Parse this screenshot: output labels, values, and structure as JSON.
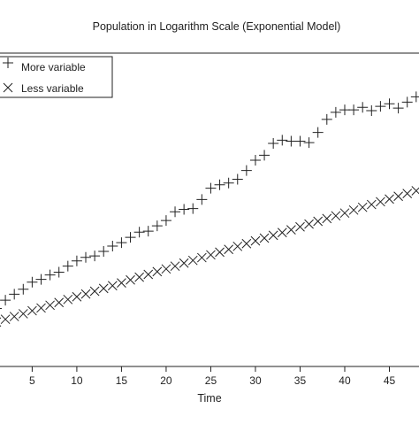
{
  "chart_data": {
    "type": "scatter",
    "title": "Population in Logarithm Scale (Exponential Model)",
    "xlabel": "Time",
    "ylabel": "",
    "xlim": [
      0.5,
      49
    ],
    "ylim": [
      0,
      1
    ],
    "x_ticks": [
      5,
      10,
      15,
      20,
      25,
      30,
      35,
      40,
      45
    ],
    "grid": false,
    "legend_position": "top-left",
    "series": [
      {
        "name": "More variable",
        "marker": "plus",
        "x": [
          1,
          2,
          3,
          4,
          5,
          6,
          7,
          8,
          9,
          10,
          11,
          12,
          13,
          14,
          15,
          16,
          17,
          18,
          19,
          20,
          21,
          22,
          23,
          24,
          25,
          26,
          27,
          28,
          29,
          30,
          31,
          32,
          33,
          34,
          35,
          36,
          37,
          38,
          39,
          40,
          41,
          42,
          43,
          44,
          45,
          46,
          47,
          48
        ],
        "y": [
          0.136,
          0.169,
          0.193,
          0.213,
          0.241,
          0.252,
          0.27,
          0.281,
          0.305,
          0.326,
          0.34,
          0.346,
          0.364,
          0.385,
          0.399,
          0.42,
          0.441,
          0.445,
          0.466,
          0.487,
          0.522,
          0.532,
          0.535,
          0.571,
          0.616,
          0.63,
          0.637,
          0.652,
          0.687,
          0.728,
          0.748,
          0.795,
          0.808,
          0.804,
          0.804,
          0.798,
          0.839,
          0.891,
          0.919,
          0.929,
          0.929,
          0.939,
          0.926,
          0.943,
          0.953,
          0.936,
          0.96,
          0.981
        ]
      },
      {
        "name": "Less variable",
        "marker": "x",
        "x": [
          1,
          2,
          3,
          4,
          5,
          6,
          7,
          8,
          9,
          10,
          11,
          12,
          13,
          14,
          15,
          16,
          17,
          18,
          19,
          20,
          21,
          22,
          23,
          24,
          25,
          26,
          27,
          28,
          29,
          30,
          31,
          32,
          33,
          34,
          35,
          36,
          37,
          38,
          39,
          40,
          41,
          42,
          43,
          44,
          45,
          46,
          47,
          48
        ],
        "y": [
          0.082,
          0.093,
          0.104,
          0.115,
          0.127,
          0.138,
          0.149,
          0.16,
          0.172,
          0.183,
          0.194,
          0.205,
          0.216,
          0.227,
          0.238,
          0.25,
          0.261,
          0.272,
          0.283,
          0.294,
          0.305,
          0.317,
          0.328,
          0.339,
          0.35,
          0.361,
          0.372,
          0.384,
          0.395,
          0.406,
          0.417,
          0.428,
          0.439,
          0.45,
          0.462,
          0.473,
          0.484,
          0.495,
          0.506,
          0.517,
          0.529,
          0.54,
          0.551,
          0.562,
          0.573,
          0.584,
          0.595,
          0.606
        ]
      }
    ],
    "colors": {
      "marker": "#222222",
      "axis": "#222222",
      "background": "#ffffff"
    }
  }
}
